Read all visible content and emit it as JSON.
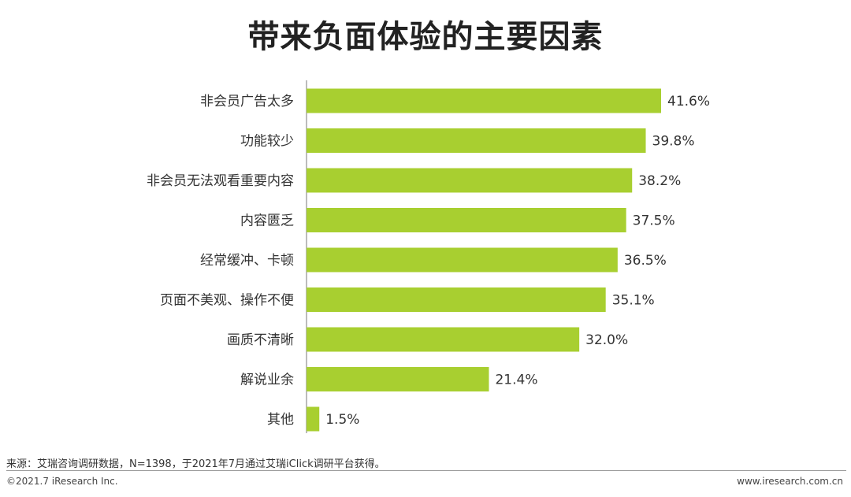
{
  "chart_data": {
    "type": "bar",
    "orientation": "horizontal",
    "title": "带来负面体验的主要因素",
    "categories": [
      "非会员广告太多",
      "功能较少",
      "非会员无法观看重要内容",
      "内容匮乏",
      "经常缓冲、卡顿",
      "页面不美观、操作不便",
      "画质不清晰",
      "解说业余",
      "其他"
    ],
    "values": [
      41.6,
      39.8,
      38.2,
      37.5,
      36.5,
      35.1,
      32.0,
      21.4,
      1.5
    ],
    "value_labels": [
      "41.6%",
      "39.8%",
      "38.2%",
      "37.5%",
      "36.5%",
      "35.1%",
      "32.0%",
      "21.4%",
      "1.5%"
    ],
    "xlim": [
      0,
      41.6
    ],
    "grid": false,
    "legend": "none",
    "bar_color": "#a8cf30"
  },
  "footer": {
    "source": "来源：艾瑞咨询调研数据，N=1398，于2021年7月通过艾瑞iClick调研平台获得。",
    "copyright": "©2021.7 iResearch Inc.",
    "website": "www.iresearch.com.cn"
  }
}
